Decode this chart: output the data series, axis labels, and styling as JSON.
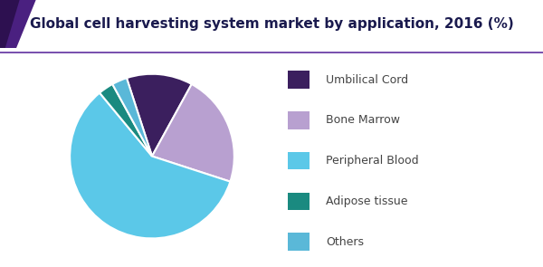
{
  "title": "Global cell harvesting system market by application, 2016 (%)",
  "title_color": "#1a1a4e",
  "title_fontsize": 11,
  "slices": [
    {
      "label": "Umbilical Cord",
      "value": 13,
      "color": "#3b1f5e"
    },
    {
      "label": "Bone Marrow",
      "value": 22,
      "color": "#b8a0d0"
    },
    {
      "label": "Peripheral Blood",
      "value": 59,
      "color": "#5bc8e8"
    },
    {
      "label": "Adipose tissue",
      "value": 3,
      "color": "#1a8a80"
    },
    {
      "label": "Others",
      "value": 3,
      "color": "#5ab8d8"
    }
  ],
  "legend_labels": [
    "Umbilical Cord",
    "Bone Marrow",
    "Peripheral Blood",
    "Adipose tissue",
    "Others"
  ],
  "legend_colors": [
    "#3b1f5e",
    "#b8a0d0",
    "#5bc8e8",
    "#1a8a80",
    "#5ab8d8"
  ],
  "header_triangle_color1": "#4a2080",
  "header_triangle_color2": "#2d1050",
  "header_line_color": "#6030a0",
  "bg_color": "#ffffff",
  "pie_edge_color": "#ffffff",
  "start_angle": 108,
  "figsize": [
    6.0,
    2.95
  ],
  "dpi": 100
}
